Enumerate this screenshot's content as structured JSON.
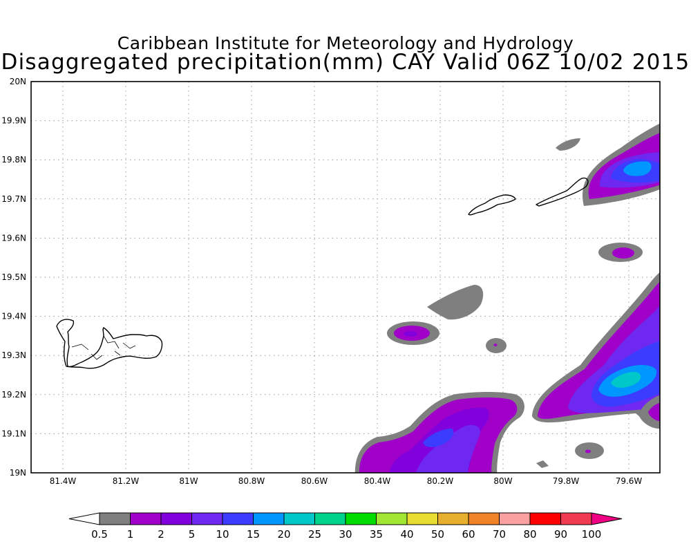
{
  "title_line1": "Caribbean Institute for Meteorology and Hydrology",
  "title_line2": "Disaggregated precipitation(mm) CAY Valid 06Z 10/02 2015",
  "map": {
    "lon_labels": [
      "81.4W",
      "81.2W",
      "81W",
      "80.8W",
      "80.6W",
      "80.4W",
      "80.2W",
      "80W",
      "79.8W",
      "79.6W"
    ],
    "lat_labels": [
      "19N",
      "19.1N",
      "19.2N",
      "19.3N",
      "19.4N",
      "19.5N",
      "19.6N",
      "19.7N",
      "19.8N",
      "19.9N",
      "20N"
    ],
    "gridlines": "dotted"
  },
  "colorbar": {
    "ticks": [
      "0.5",
      "1",
      "2",
      "5",
      "10",
      "15",
      "20",
      "25",
      "30",
      "35",
      "40",
      "50",
      "60",
      "70",
      "80",
      "90",
      "100"
    ],
    "colors": [
      "#ffffff",
      "#7f7f7f",
      "#a000c8",
      "#8200dc",
      "#6e28f0",
      "#3c3cff",
      "#0096ff",
      "#00c8c8",
      "#00d28c",
      "#00dc00",
      "#a0e632",
      "#e6dc32",
      "#e6af2d",
      "#f08228",
      "#faa0a0",
      "#ff0000",
      "#f03c50",
      "#f00082"
    ]
  }
}
